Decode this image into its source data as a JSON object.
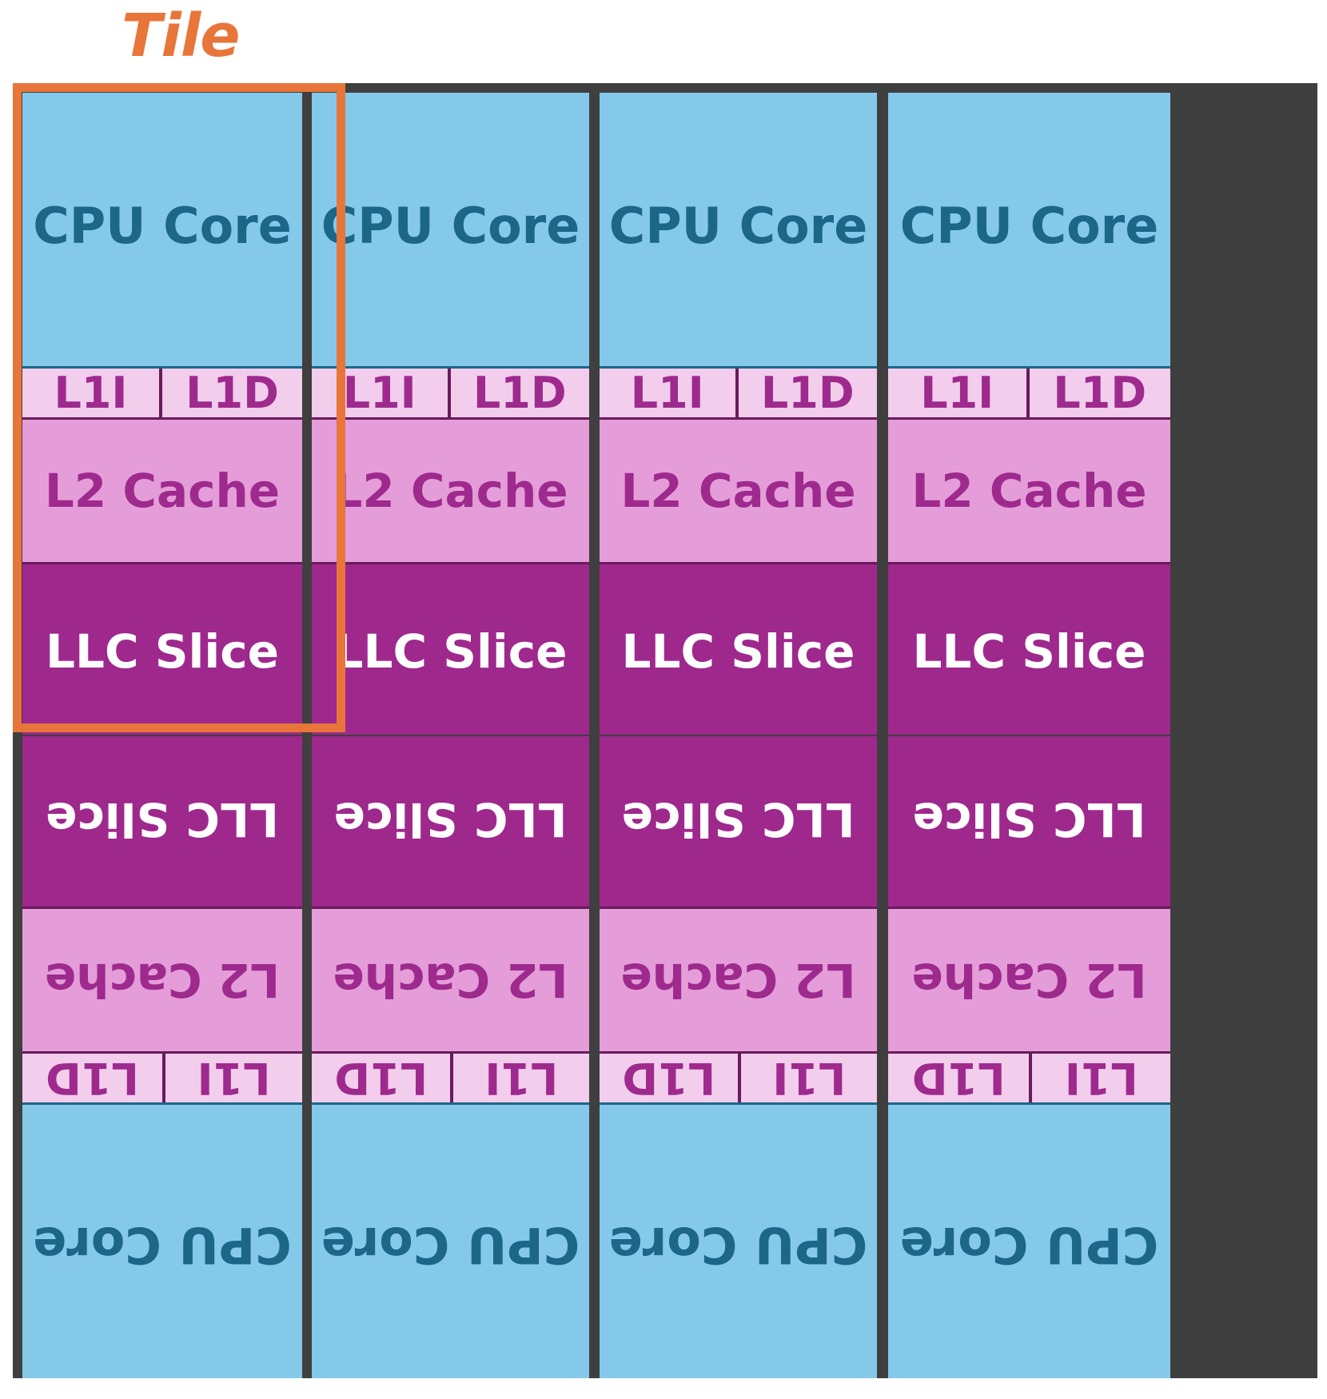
{
  "tile_label": "Tile",
  "labels": {
    "core": "CPU Core",
    "l1i": "L1I",
    "l1d": "L1D",
    "l2": "L2 Cache",
    "llc": "LLC Slice"
  },
  "layout": {
    "columns": 4,
    "rows": 2,
    "bottom_row_rotated_180": true,
    "highlighted_tile": "top-left"
  },
  "colors": {
    "tile_accent": "#e8753a",
    "frame": "#3f3f3f",
    "core_fill": "#85c9ea",
    "core_text": "#1c6688",
    "l1_fill": "#f2cdec",
    "l1_text": "#9e2a8e",
    "l2_fill": "#e49dd8",
    "l2_text": "#9e2a8e",
    "llc_fill": "#9f288d",
    "llc_text": "#ffffff",
    "divider": "#6a1a5c",
    "core_divider": "#1c6688"
  }
}
